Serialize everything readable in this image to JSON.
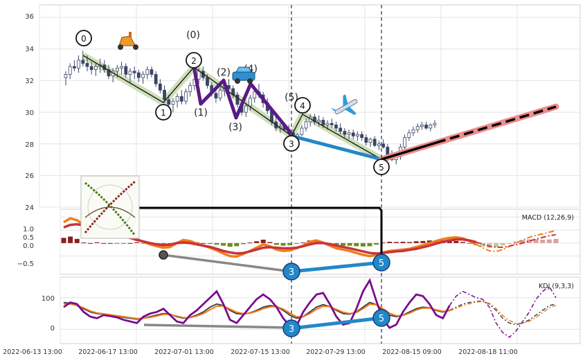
{
  "chart_data": [
    {
      "type": "candlestick",
      "panel": "price",
      "ylim": [
        24,
        36.8
      ],
      "y_ticks": [
        24,
        26,
        28,
        30,
        32,
        34,
        36
      ],
      "grid": true,
      "candles": [
        [
          32.2,
          32.6,
          31.7,
          32.4
        ],
        [
          32.4,
          33.1,
          32.1,
          32.9
        ],
        [
          32.9,
          33.3,
          32.6,
          32.8
        ],
        [
          32.8,
          33.6,
          32.5,
          33.3
        ],
        [
          33.3,
          33.9,
          32.9,
          33.1
        ],
        [
          33.1,
          33.6,
          32.6,
          32.9
        ],
        [
          32.9,
          33.2,
          32.4,
          32.7
        ],
        [
          32.7,
          33.1,
          32.3,
          32.9
        ],
        [
          32.9,
          33.4,
          32.5,
          33.0
        ],
        [
          33.0,
          33.3,
          32.5,
          32.7
        ],
        [
          32.7,
          33.0,
          32.1,
          32.3
        ],
        [
          32.3,
          32.8,
          31.9,
          32.6
        ],
        [
          32.6,
          33.0,
          32.2,
          32.8
        ],
        [
          32.8,
          33.2,
          32.4,
          32.9
        ],
        [
          32.9,
          33.1,
          32.2,
          32.4
        ],
        [
          32.4,
          32.8,
          31.9,
          32.6
        ],
        [
          32.6,
          32.9,
          32.1,
          32.5
        ],
        [
          32.5,
          32.7,
          31.9,
          32.2
        ],
        [
          32.2,
          32.6,
          31.8,
          32.4
        ],
        [
          32.4,
          32.9,
          32.1,
          32.7
        ],
        [
          32.7,
          32.9,
          32.2,
          32.4
        ],
        [
          32.4,
          32.6,
          31.6,
          31.8
        ],
        [
          31.8,
          32.1,
          31.2,
          31.4
        ],
        [
          31.4,
          31.7,
          30.6,
          30.8
        ],
        [
          30.8,
          31.1,
          30.2,
          30.5
        ],
        [
          30.5,
          30.9,
          30.0,
          30.7
        ],
        [
          30.7,
          31.2,
          30.3,
          31.0
        ],
        [
          31.0,
          31.4,
          30.5,
          30.7
        ],
        [
          30.7,
          31.5,
          30.5,
          31.3
        ],
        [
          31.3,
          31.9,
          31.0,
          31.7
        ],
        [
          31.7,
          32.3,
          31.4,
          32.1
        ],
        [
          32.1,
          32.8,
          31.8,
          32.6
        ],
        [
          32.6,
          32.9,
          32.0,
          32.2
        ],
        [
          32.2,
          32.4,
          31.5,
          31.7
        ],
        [
          31.7,
          31.9,
          31.0,
          31.2
        ],
        [
          31.2,
          31.5,
          30.6,
          30.9
        ],
        [
          30.9,
          31.6,
          30.7,
          31.4
        ],
        [
          31.4,
          31.9,
          31.0,
          31.7
        ],
        [
          31.7,
          32.1,
          31.3,
          31.5
        ],
        [
          31.5,
          31.7,
          30.9,
          31.1
        ],
        [
          31.1,
          31.3,
          30.3,
          30.5
        ],
        [
          30.5,
          30.8,
          29.8,
          30.0
        ],
        [
          30.0,
          30.6,
          29.7,
          30.4
        ],
        [
          30.4,
          31.1,
          30.1,
          30.9
        ],
        [
          30.9,
          31.6,
          30.6,
          31.3
        ],
        [
          31.3,
          31.8,
          30.9,
          31.1
        ],
        [
          31.1,
          31.3,
          30.3,
          30.6
        ],
        [
          30.6,
          30.9,
          29.9,
          30.1
        ],
        [
          30.1,
          30.3,
          29.2,
          29.4
        ],
        [
          29.4,
          29.7,
          28.8,
          29.0
        ],
        [
          29.0,
          29.3,
          28.7,
          29.1
        ],
        [
          29.1,
          29.3,
          28.8,
          28.9
        ],
        [
          28.9,
          29.2,
          28.5,
          28.7
        ],
        [
          28.7,
          28.9,
          28.2,
          28.3
        ],
        [
          28.3,
          28.7,
          28.1,
          28.6
        ],
        [
          28.6,
          29.2,
          28.5,
          29.0
        ],
        [
          29.0,
          29.6,
          28.8,
          29.4
        ],
        [
          29.4,
          29.9,
          29.1,
          29.7
        ],
        [
          29.7,
          29.9,
          29.2,
          29.4
        ],
        [
          29.4,
          29.8,
          29.1,
          29.5
        ],
        [
          29.5,
          29.7,
          29.0,
          29.2
        ],
        [
          29.2,
          29.5,
          28.9,
          29.3
        ],
        [
          29.3,
          29.6,
          29.0,
          29.2
        ],
        [
          29.2,
          29.4,
          28.8,
          29.0
        ],
        [
          29.0,
          29.3,
          28.6,
          28.8
        ],
        [
          28.8,
          29.0,
          28.4,
          28.6
        ],
        [
          28.6,
          28.9,
          28.3,
          28.7
        ],
        [
          28.7,
          28.9,
          28.3,
          28.5
        ],
        [
          28.5,
          28.8,
          28.2,
          28.6
        ],
        [
          28.6,
          28.8,
          28.2,
          28.4
        ],
        [
          28.4,
          28.6,
          27.9,
          28.1
        ],
        [
          28.1,
          28.4,
          27.8,
          28.3
        ],
        [
          28.3,
          28.5,
          27.8,
          27.9
        ],
        [
          27.9,
          28.2,
          27.6,
          28.0
        ],
        [
          28.0,
          28.3,
          27.7,
          27.8
        ],
        [
          27.8,
          28.0,
          27.1,
          27.3
        ],
        [
          27.3,
          27.6,
          26.9,
          27.0
        ],
        [
          27.0,
          27.4,
          26.7,
          27.2
        ],
        [
          27.2,
          28.0,
          27.0,
          27.8
        ],
        [
          27.8,
          28.6,
          27.6,
          28.4
        ],
        [
          28.4,
          28.9,
          28.2,
          28.7
        ],
        [
          28.7,
          29.1,
          28.5,
          28.9
        ],
        [
          28.9,
          29.3,
          28.7,
          29.1
        ],
        [
          29.1,
          29.4,
          28.9,
          29.2
        ],
        [
          29.2,
          29.4,
          28.9,
          29.0
        ],
        [
          29.0,
          29.3,
          28.8,
          29.2
        ],
        [
          29.2,
          29.5,
          29.0,
          29.3
        ]
      ]
    },
    {
      "type": "line",
      "panel": "macd",
      "title": "MACD (12,26,9)",
      "ylim": [
        -1.2,
        1.3
      ],
      "y_ticks": [
        -0.5,
        0.0,
        0.5,
        1.0
      ],
      "series": [
        {
          "color": "#f07c1a",
          "values": [
            0.8,
            0.95,
            0.88,
            0.7,
            0.6,
            0.55,
            0.45,
            0.38,
            0.3,
            0.25,
            0.2,
            0.15,
            0.05,
            -0.05,
            -0.12,
            -0.18,
            -0.15,
            0.0,
            0.12,
            0.08,
            -0.02,
            -0.1,
            -0.18,
            -0.28,
            -0.4,
            -0.5,
            -0.52,
            -0.42,
            -0.3,
            -0.18,
            -0.05,
            -0.12,
            -0.25,
            -0.3,
            -0.28,
            -0.2,
            -0.1,
            0.05,
            0.1,
            0.02,
            -0.1,
            -0.2,
            -0.25,
            -0.3,
            -0.38,
            -0.45,
            -0.5,
            -0.46,
            -0.36,
            -0.3,
            -0.28,
            -0.25,
            -0.22,
            -0.15,
            -0.08,
            0.0,
            0.08,
            0.15,
            0.2,
            0.22,
            0.18,
            0.08,
            -0.05,
            -0.18,
            -0.3,
            -0.32,
            -0.25,
            -0.12,
            0.0,
            0.12,
            0.22,
            0.3,
            0.35,
            0.42,
            0.48
          ]
        },
        {
          "color": "#c8343a",
          "values": [
            0.6,
            0.7,
            0.72,
            0.68,
            0.6,
            0.52,
            0.45,
            0.38,
            0.32,
            0.27,
            0.2,
            0.12,
            0.06,
            0.0,
            -0.05,
            -0.08,
            -0.06,
            0.0,
            0.02,
            0.0,
            -0.05,
            -0.1,
            -0.15,
            -0.22,
            -0.3,
            -0.36,
            -0.4,
            -0.38,
            -0.32,
            -0.25,
            -0.18,
            -0.16,
            -0.18,
            -0.2,
            -0.2,
            -0.18,
            -0.12,
            -0.05,
            0.0,
            0.0,
            -0.04,
            -0.1,
            -0.15,
            -0.2,
            -0.26,
            -0.32,
            -0.38,
            -0.4,
            -0.38,
            -0.35,
            -0.32,
            -0.3,
            -0.26,
            -0.22,
            -0.16,
            -0.1,
            -0.02,
            0.05,
            0.1,
            0.14,
            0.14,
            0.1,
            0.04,
            -0.04,
            -0.12,
            -0.16,
            -0.16,
            -0.12,
            -0.06,
            0.0,
            0.08,
            0.15,
            0.22,
            0.28,
            0.32
          ]
        }
      ],
      "histogram": [
        0.2,
        0.25,
        0.16,
        0.02,
        0.0,
        0.03,
        0.0,
        0.0,
        -0.02,
        -0.02,
        0.0,
        0.03,
        -0.01,
        -0.05,
        -0.07,
        -0.1,
        -0.09,
        0.0,
        0.1,
        0.08,
        0.03,
        0.0,
        -0.03,
        -0.06,
        -0.1,
        -0.14,
        -0.12,
        -0.04,
        0.02,
        0.07,
        0.13,
        0.04,
        -0.07,
        -0.1,
        -0.08,
        -0.02,
        0.02,
        0.1,
        0.1,
        0.02,
        -0.06,
        -0.1,
        -0.1,
        -0.1,
        -0.12,
        -0.13,
        -0.12,
        -0.06,
        0.02,
        0.05,
        0.04,
        0.05,
        0.04,
        0.07,
        0.08,
        0.1,
        0.1,
        0.1,
        0.1,
        0.08,
        0.04,
        -0.02,
        -0.09,
        -0.14,
        -0.18,
        -0.16,
        -0.09,
        0.0,
        0.06,
        0.12,
        0.14,
        0.15,
        0.13,
        0.14,
        0.16
      ]
    },
    {
      "type": "line",
      "panel": "kdj",
      "title": "KDJ (9,3,3)",
      "ylim": [
        -45,
        165
      ],
      "y_ticks": [
        0,
        100
      ],
      "series": [
        {
          "color": "#444444",
          "values": [
            85,
            82,
            75,
            65,
            55,
            50,
            48,
            45,
            42,
            38,
            35,
            32,
            35,
            40,
            45,
            50,
            48,
            40,
            35,
            38,
            45,
            55,
            70,
            80,
            75,
            60,
            50,
            48,
            52,
            60,
            70,
            75,
            72,
            60,
            45,
            35,
            40,
            55,
            70,
            78,
            72,
            60,
            50,
            48,
            55,
            70,
            85,
            78,
            60,
            45,
            40,
            45,
            55,
            65,
            70,
            68,
            60,
            55,
            60,
            70,
            80,
            85,
            88,
            90,
            80,
            60,
            35,
            20,
            15,
            20,
            30,
            45,
            60,
            75,
            80
          ]
        },
        {
          "color": "#f07c1a",
          "values": [
            80,
            80,
            76,
            68,
            58,
            52,
            49,
            46,
            43,
            40,
            37,
            34,
            35,
            38,
            42,
            47,
            47,
            42,
            37,
            37,
            42,
            50,
            62,
            73,
            74,
            64,
            54,
            50,
            51,
            57,
            65,
            71,
            72,
            64,
            51,
            40,
            40,
            50,
            63,
            73,
            72,
            63,
            54,
            50,
            53,
            65,
            79,
            78,
            65,
            51,
            43,
            44,
            51,
            61,
            67,
            67,
            62,
            57,
            59,
            66,
            75,
            81,
            86,
            88,
            82,
            66,
            44,
            28,
            19,
            19,
            26,
            38,
            53,
            68,
            76
          ]
        },
        {
          "color": "#7a0b8f",
          "values": [
            70,
            85,
            80,
            55,
            40,
            35,
            45,
            42,
            38,
            30,
            25,
            20,
            40,
            50,
            55,
            65,
            45,
            25,
            20,
            45,
            60,
            80,
            100,
            120,
            80,
            30,
            20,
            45,
            70,
            95,
            110,
            95,
            70,
            35,
            10,
            10,
            55,
            85,
            110,
            115,
            80,
            40,
            15,
            20,
            65,
            120,
            155,
            90,
            30,
            5,
            15,
            55,
            85,
            110,
            105,
            80,
            45,
            35,
            75,
            105,
            120,
            110,
            100,
            95,
            70,
            20,
            -10,
            -25,
            -5,
            25,
            55,
            95,
            120,
            135,
            100
          ]
        }
      ]
    }
  ],
  "y_labels_price": [
    "36",
    "34",
    "32",
    "30",
    "28",
    "26",
    "24"
  ],
  "y_labels_macd": [
    "1.0",
    "0.5",
    "0.0",
    "−0.5"
  ],
  "y_labels_kdj": [
    "100",
    "0"
  ],
  "x_labels": [
    "2022-06-13 13:00",
    "2022-06-17 13:00",
    "2022-07-01 13:00",
    "2022-07-15 13:00",
    "2022-07-29 13:00",
    "2022-08-15 09:00",
    "2022-08-18 11:00"
  ],
  "panel_titles": {
    "macd": "MACD (12,26,9)",
    "kdj": "KDJ (9,3,3)"
  },
  "wave_labels": {
    "price_circled": [
      "0",
      "1",
      "2",
      "3",
      "4",
      "5"
    ],
    "price_parenthesized": [
      "(0)",
      "(1)",
      "(2)",
      "(3)",
      "(4)",
      "(5)"
    ],
    "macd_points": [
      "3",
      "5"
    ],
    "kdj_points": [
      "3",
      "5"
    ]
  },
  "icons": [
    "scooter-icon",
    "car-icon",
    "airplane-icon",
    "fibonacci-image"
  ],
  "colors": {
    "up_candle": "#ffffff",
    "down_candle": "#3a4466",
    "wave_highlight": "#cfe0b8",
    "purple_wave": "#5a1b86",
    "blue_line": "#2288c8",
    "projection_glow": "#ef8c8c",
    "macd_up": "#8b1e1e",
    "macd_down": "#6b8c1e",
    "grey_line": "#888888",
    "vline": "#4a5a70"
  }
}
